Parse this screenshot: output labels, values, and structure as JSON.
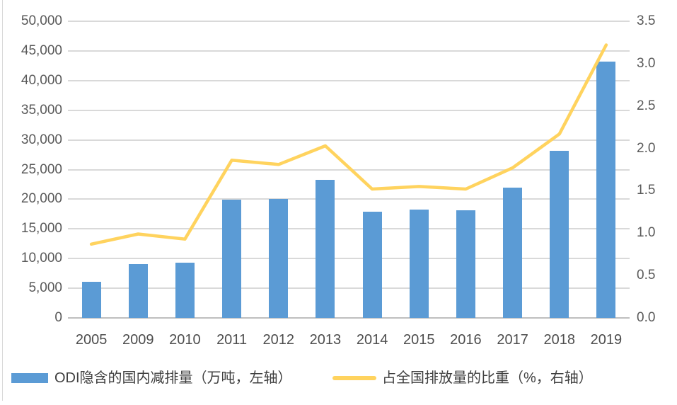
{
  "chart_data": {
    "type": "bar+line",
    "title": "",
    "categories": [
      "2005",
      "2009",
      "2010",
      "2011",
      "2012",
      "2013",
      "2014",
      "2015",
      "2016",
      "2017",
      "2018",
      "2019"
    ],
    "series": [
      {
        "name": "ODI隐含的国内减排量（万吨，左轴）",
        "type": "bar",
        "axis": "left",
        "color": "#5b9bd5",
        "values": [
          6100,
          9100,
          9250,
          19900,
          20050,
          23300,
          17900,
          18200,
          18150,
          21900,
          28150,
          43250
        ]
      },
      {
        "name": "占全国排放量的比重（%，右轴）",
        "type": "line",
        "axis": "right",
        "color": "#ffd35e",
        "values": [
          0.87,
          0.99,
          0.93,
          1.86,
          1.81,
          2.03,
          1.52,
          1.55,
          1.52,
          1.77,
          2.17,
          3.22
        ]
      }
    ],
    "left_axis": {
      "min": 0,
      "max": 50000,
      "step": 5000,
      "tick_labels": [
        "0",
        "5,000",
        "10,000",
        "15,000",
        "20,000",
        "25,000",
        "30,000",
        "35,000",
        "40,000",
        "45,000",
        "50,000"
      ]
    },
    "right_axis": {
      "min": 0,
      "max": 3.5,
      "step": 0.5,
      "tick_labels": [
        "0.0",
        "0.5",
        "1.0",
        "1.5",
        "2.0",
        "2.5",
        "3.0",
        "3.5"
      ]
    },
    "grid": true,
    "legend_position": "bottom",
    "colors": {
      "bar": "#5b9bd5",
      "line": "#ffd35e",
      "gridline": "#d9d9d9",
      "baseline": "#bfbfbf",
      "axis_text": "#595959",
      "legend_text": "#3f3f3f",
      "background": "#ffffff"
    }
  }
}
